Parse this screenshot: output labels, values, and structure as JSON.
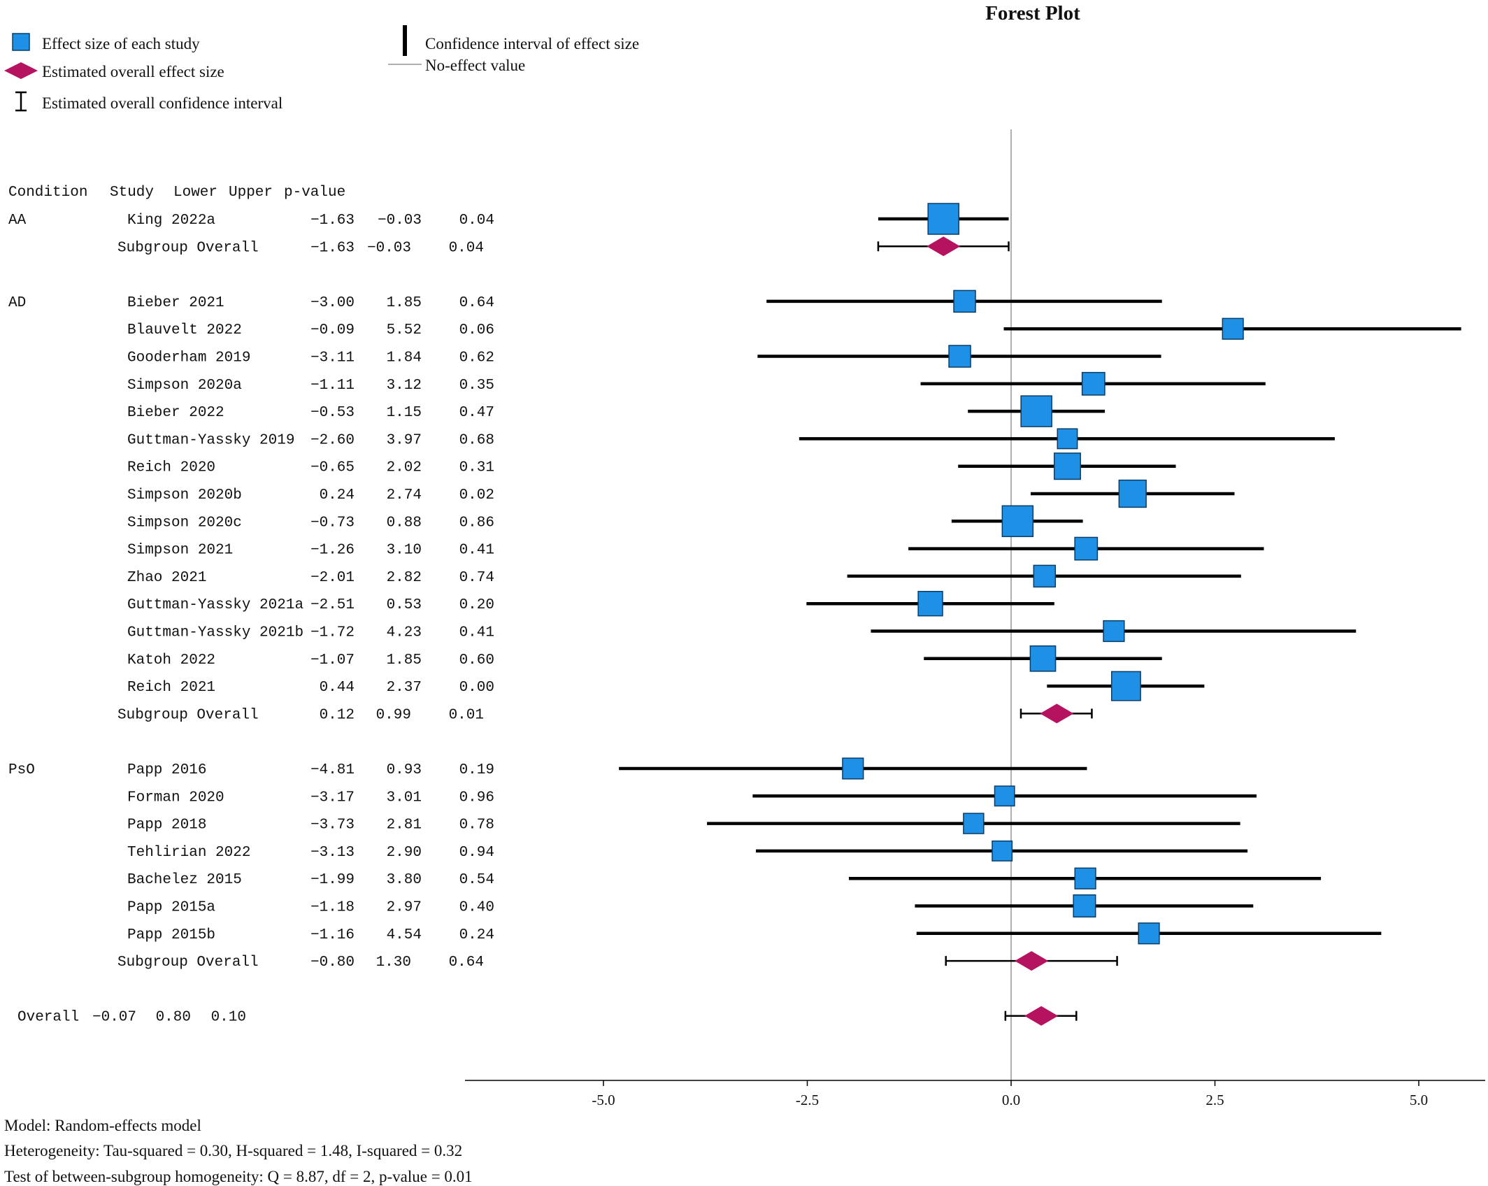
{
  "colors": {
    "study_marker": "#1e90e6",
    "overall_marker": "#b5135f",
    "ci_line": "#000000",
    "no_effect_line": "#b0b0b0"
  },
  "legend": {
    "study_effect": "Effect size of each study",
    "overall_effect": "Estimated overall effect size",
    "overall_ci": "Estimated overall confidence interval",
    "ci": "Confidence interval of effect size",
    "no_effect": "No-effect value"
  },
  "chart_data": {
    "type": "forest",
    "title": "Forest Plot",
    "x_ticks": [
      "-5.0",
      "-2.5",
      "0.0",
      "2.5",
      "5.0"
    ],
    "xlim": [
      -6.7,
      5.8
    ],
    "no_effect_value": 0,
    "legend_position": "top-left",
    "columns": [
      "Condition",
      "Study",
      "Lower",
      "Upper",
      "p-value"
    ],
    "groups": [
      {
        "condition": "AA",
        "studies": [
          {
            "study": "King 2022a",
            "lower": "−1.63",
            "upper": "−0.03",
            "p": "0.04",
            "es": -0.83,
            "lo": -1.63,
            "hi": -0.03,
            "weight": 1.0
          }
        ],
        "subgroup": {
          "label": "Subgroup Overall",
          "lower": "−1.63",
          "upper": "−0.03",
          "p": "0.04",
          "es": -0.83,
          "lo": -1.63,
          "hi": -0.03
        }
      },
      {
        "condition": "AD",
        "studies": [
          {
            "study": "Bieber 2021",
            "lower": "−3.00",
            "upper": "1.85",
            "p": "0.64",
            "es": -0.57,
            "lo": -3.0,
            "hi": 1.85,
            "weight": 0.5
          },
          {
            "study": "Blauvelt 2022",
            "lower": "−0.09",
            "upper": "5.52",
            "p": "0.06",
            "es": 2.72,
            "lo": -0.09,
            "hi": 5.52,
            "weight": 0.45
          },
          {
            "study": "Gooderham 2019",
            "lower": "−3.11",
            "upper": "1.84",
            "p": "0.62",
            "es": -0.63,
            "lo": -3.11,
            "hi": 1.84,
            "weight": 0.5
          },
          {
            "study": "Simpson 2020a",
            "lower": "−1.11",
            "upper": "3.12",
            "p": "0.35",
            "es": 1.01,
            "lo": -1.11,
            "hi": 3.12,
            "weight": 0.55
          },
          {
            "study": "Bieber 2022",
            "lower": "−0.53",
            "upper": "1.15",
            "p": "0.47",
            "es": 0.31,
            "lo": -0.53,
            "hi": 1.15,
            "weight": 1.0
          },
          {
            "study": "Guttman-Yassky 2019",
            "lower": "−2.60",
            "upper": "3.97",
            "p": "0.68",
            "es": 0.69,
            "lo": -2.6,
            "hi": 3.97,
            "weight": 0.4
          },
          {
            "study": "Reich 2020",
            "lower": "−0.65",
            "upper": "2.02",
            "p": "0.31",
            "es": 0.69,
            "lo": -0.65,
            "hi": 2.02,
            "weight": 0.75
          },
          {
            "study": "Simpson 2020b",
            "lower": "0.24",
            "upper": "2.74",
            "p": "0.02",
            "es": 1.49,
            "lo": 0.24,
            "hi": 2.74,
            "weight": 0.8
          },
          {
            "study": "Simpson 2020c",
            "lower": "−0.73",
            "upper": "0.88",
            "p": "0.86",
            "es": 0.08,
            "lo": -0.73,
            "hi": 0.88,
            "weight": 1.0
          },
          {
            "study": "Simpson 2021",
            "lower": "−1.26",
            "upper": "3.10",
            "p": "0.41",
            "es": 0.92,
            "lo": -1.26,
            "hi": 3.1,
            "weight": 0.55
          },
          {
            "study": "Zhao 2021",
            "lower": "−2.01",
            "upper": "2.82",
            "p": "0.74",
            "es": 0.41,
            "lo": -2.01,
            "hi": 2.82,
            "weight": 0.5
          },
          {
            "study": "Guttman-Yassky 2021a",
            "lower": "−2.51",
            "upper": "0.53",
            "p": "0.20",
            "es": -0.99,
            "lo": -2.51,
            "hi": 0.53,
            "weight": 0.65
          },
          {
            "study": "Guttman-Yassky 2021b",
            "lower": "−1.72",
            "upper": "4.23",
            "p": "0.41",
            "es": 1.26,
            "lo": -1.72,
            "hi": 4.23,
            "weight": 0.45
          },
          {
            "study": "Katoh 2022",
            "lower": "−1.07",
            "upper": "1.85",
            "p": "0.60",
            "es": 0.39,
            "lo": -1.07,
            "hi": 1.85,
            "weight": 0.7
          },
          {
            "study": "Reich 2021",
            "lower": "0.44",
            "upper": "2.37",
            "p": "0.00",
            "es": 1.41,
            "lo": 0.44,
            "hi": 2.37,
            "weight": 0.9
          }
        ],
        "subgroup": {
          "label": "Subgroup Overall",
          "lower": "0.12",
          "upper": "0.99",
          "p": "0.01",
          "es": 0.56,
          "lo": 0.12,
          "hi": 0.99
        }
      },
      {
        "condition": "PsO",
        "studies": [
          {
            "study": "Papp 2016",
            "lower": "−4.81",
            "upper": "0.93",
            "p": "0.19",
            "es": -1.94,
            "lo": -4.81,
            "hi": 0.93,
            "weight": 0.45
          },
          {
            "study": "Forman 2020",
            "lower": "−3.17",
            "upper": "3.01",
            "p": "0.96",
            "es": -0.08,
            "lo": -3.17,
            "hi": 3.01,
            "weight": 0.4
          },
          {
            "study": "Papp 2018",
            "lower": "−3.73",
            "upper": "2.81",
            "p": "0.78",
            "es": -0.46,
            "lo": -3.73,
            "hi": 2.81,
            "weight": 0.42
          },
          {
            "study": "Tehlirian 2022",
            "lower": "−3.13",
            "upper": "2.90",
            "p": "0.94",
            "es": -0.11,
            "lo": -3.13,
            "hi": 2.9,
            "weight": 0.4
          },
          {
            "study": "Bachelez 2015",
            "lower": "−1.99",
            "upper": "3.80",
            "p": "0.54",
            "es": 0.91,
            "lo": -1.99,
            "hi": 3.8,
            "weight": 0.45
          },
          {
            "study": "Papp 2015a",
            "lower": "−1.18",
            "upper": "2.97",
            "p": "0.40",
            "es": 0.9,
            "lo": -1.18,
            "hi": 2.97,
            "weight": 0.52
          },
          {
            "study": "Papp 2015b",
            "lower": "−1.16",
            "upper": "4.54",
            "p": "0.24",
            "es": 1.69,
            "lo": -1.16,
            "hi": 4.54,
            "weight": 0.45
          }
        ],
        "subgroup": {
          "label": "Subgroup Overall",
          "lower": "−0.80",
          "upper": "1.30",
          "p": "0.64",
          "es": 0.25,
          "lo": -0.8,
          "hi": 1.3
        }
      }
    ],
    "overall": {
      "label": "Overall",
      "lower": "−0.07",
      "upper": "0.80",
      "p": "0.10",
      "es": 0.37,
      "lo": -0.07,
      "hi": 0.8
    }
  },
  "footer": {
    "model": "Model: Random-effects model",
    "heterogeneity": "Heterogeneity: Tau-squared = 0.30, H-squared = 1.48, I-squared = 0.32",
    "homogeneity": "Test of between-subgroup homogeneity: Q = 8.87, df = 2, p-value = 0.01"
  }
}
